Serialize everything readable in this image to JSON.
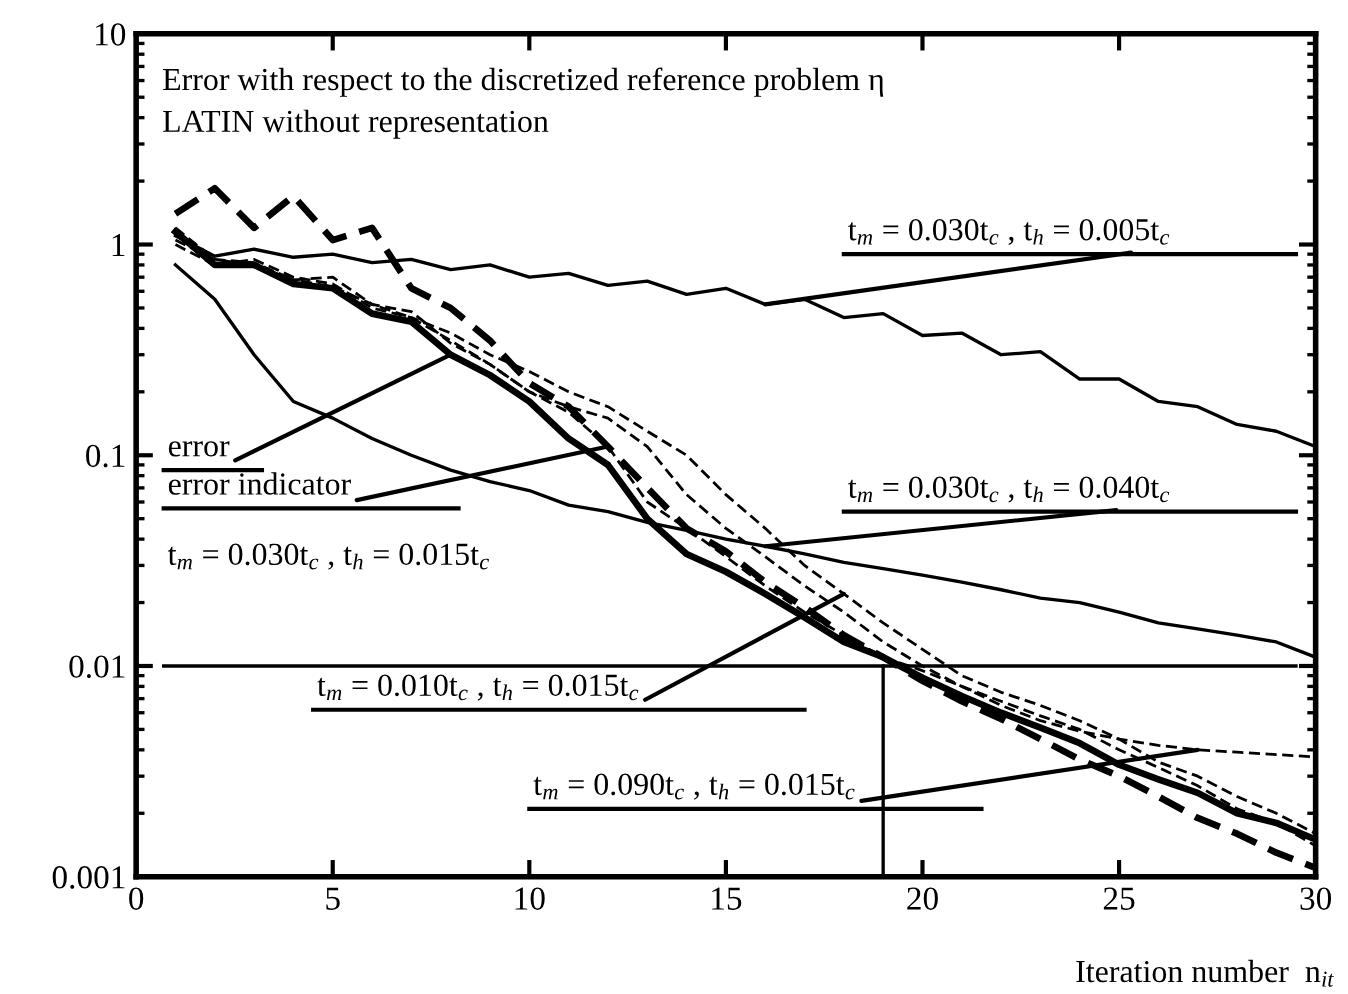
{
  "chart_data": {
    "type": "line",
    "title": "Error with respect to the discretized reference problem η",
    "subtitle": "LATIN without representation",
    "xlabel": "Iteration number  n$_{it}$",
    "x": [
      1,
      2,
      3,
      4,
      5,
      6,
      7,
      8,
      9,
      10,
      11,
      12,
      13,
      14,
      15,
      16,
      17,
      18,
      19,
      20,
      21,
      22,
      23,
      24,
      25,
      26,
      27,
      28,
      29,
      30
    ],
    "series": [
      {
        "color": "#000000",
        "line_style": "solid",
        "values": [
          1.1,
          0.88,
          0.95,
          0.87,
          0.9,
          0.82,
          0.85,
          0.76,
          0.8,
          0.7,
          0.73,
          0.64,
          0.67,
          0.58,
          0.62,
          0.52,
          0.55,
          0.45,
          0.47,
          0.37,
          0.38,
          0.3,
          0.31,
          0.23,
          0.23,
          0.18,
          0.17,
          0.14,
          0.13,
          0.11
        ]
      },
      {
        "color": "#000000",
        "line_style": "solid",
        "values": [
          0.8,
          0.55,
          0.3,
          0.18,
          0.15,
          0.12,
          0.1,
          0.085,
          0.075,
          0.068,
          0.058,
          0.054,
          0.048,
          0.044,
          0.04,
          0.037,
          0.034,
          0.031,
          0.029,
          0.027,
          0.025,
          0.023,
          0.021,
          0.02,
          0.018,
          0.016,
          0.015,
          0.014,
          0.013,
          0.011
        ]
      },
      {
        "color": "#000000",
        "line_style": "solid",
        "values": [
          1.15,
          0.8,
          0.8,
          0.65,
          0.62,
          0.47,
          0.43,
          0.3,
          0.24,
          0.18,
          0.12,
          0.09,
          0.05,
          0.034,
          0.028,
          0.022,
          0.017,
          0.013,
          0.011,
          0.0088,
          0.0072,
          0.006,
          0.0051,
          0.0043,
          0.0034,
          0.0029,
          0.0025,
          0.002,
          0.0018,
          0.0015
        ]
      },
      {
        "color": "#000000",
        "line_style": "dashed",
        "values": [
          1.2,
          0.85,
          0.82,
          0.68,
          0.7,
          0.52,
          0.48,
          0.34,
          0.27,
          0.2,
          0.16,
          0.11,
          0.06,
          0.045,
          0.033,
          0.024,
          0.018,
          0.014,
          0.011,
          0.0095,
          0.008,
          0.0068,
          0.0058,
          0.005,
          0.004,
          0.0033,
          0.0027,
          0.0021,
          0.0018,
          0.0014
        ]
      },
      {
        "color": "#000000",
        "line_style": "dashed",
        "values": [
          1.4,
          1.85,
          1.2,
          1.7,
          1.05,
          1.2,
          0.62,
          0.5,
          0.35,
          0.22,
          0.17,
          0.11,
          0.07,
          0.045,
          0.035,
          0.025,
          0.019,
          0.014,
          0.011,
          0.0085,
          0.0068,
          0.0056,
          0.0045,
          0.0036,
          0.003,
          0.0024,
          0.0019,
          0.0016,
          0.0013,
          0.0011
        ]
      },
      {
        "color": "#000000",
        "line_style": "dashed",
        "values": [
          1.0,
          0.8,
          0.85,
          0.7,
          0.65,
          0.5,
          0.45,
          0.38,
          0.3,
          0.25,
          0.2,
          0.17,
          0.13,
          0.1,
          0.065,
          0.045,
          0.03,
          0.022,
          0.016,
          0.012,
          0.009,
          0.0075,
          0.0065,
          0.0055,
          0.0045,
          0.0035,
          0.003,
          0.0024,
          0.002,
          0.0016
        ]
      },
      {
        "color": "#000000",
        "line_style": "dashed",
        "values": [
          1.05,
          0.85,
          0.8,
          0.68,
          0.63,
          0.52,
          0.45,
          0.35,
          0.27,
          0.2,
          0.17,
          0.15,
          0.11,
          0.065,
          0.045,
          0.033,
          0.024,
          0.018,
          0.013,
          0.01,
          0.008,
          0.0065,
          0.0055,
          0.0049,
          0.0045,
          0.0042,
          0.004,
          0.0039,
          0.0038,
          0.0037
        ]
      }
    ],
    "annotations": [
      {
        "text": "error",
        "x": 8,
        "y": 0.3
      },
      {
        "text": "error indicator",
        "x": 12,
        "y": 0.11
      },
      "t$_{m}$ = 0.030t$_{c}$ , t$_{h}$ = 0.015t$_{c}$",
      {
        "text": "t$_{m}$ = 0.030t$_{c}$ , t$_{h}$ = 0.005t$_{c}$",
        "x": 16,
        "y": 0.52
      },
      {
        "text": "t$_{m}$ = 0.030t$_{c}$ , t$_{h}$ = 0.040t$_{c}$",
        "x": 16,
        "y": 0.037
      },
      {
        "text": "t$_{m}$ = 0.010t$_{c}$ , t$_{h}$ = 0.015t$_{c}$",
        "x": 18,
        "y": 0.022
      },
      {
        "text": "t$_{m}$ = 0.090t$_{c}$ , t$_{h}$ = 0.015t$_{c}$",
        "x": 27,
        "y": 0.004
      }
    ],
    "ref_lines": [
      {
        "axis": "y",
        "value": 0.01,
        "color": "#000000",
        "line_style": "solid"
      },
      {
        "axis": "x",
        "value": 19,
        "color": "#000000",
        "line_style": "solid"
      }
    ],
    "log": "y",
    "xlim": [
      0,
      30
    ],
    "ylim": [
      0.001,
      10
    ],
    "xticks": [
      0,
      5,
      10,
      15,
      20,
      25,
      30
    ],
    "yticks": [
      {
        "value": 10,
        "label": "10"
      },
      {
        "value": 1,
        "label": "1"
      },
      {
        "value": 0.1,
        "label": "0.1"
      },
      {
        "value": 0.01,
        "label": "0.01"
      },
      {
        "value": 0.001,
        "label": "0.001"
      }
    ],
    "grid": false,
    "legend": false
  }
}
